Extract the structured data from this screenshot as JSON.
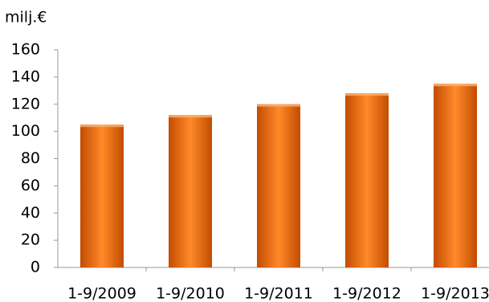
{
  "chart_data": {
    "type": "bar",
    "y_label": "milj.€",
    "categories": [
      "1-9/2009",
      "1-9/2010",
      "1-9/2011",
      "1-9/2012",
      "1-9/2013"
    ],
    "values": [
      105,
      112,
      120,
      128,
      135
    ],
    "color": "#f07a1a",
    "ylim": [
      0,
      160
    ],
    "yticks": [
      0,
      20,
      40,
      60,
      80,
      100,
      120,
      140,
      160
    ],
    "grid": false
  }
}
